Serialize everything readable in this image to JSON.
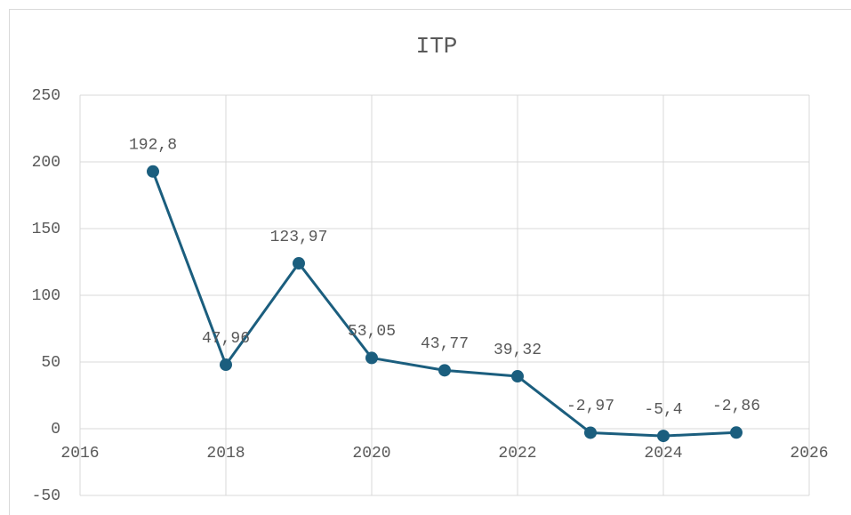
{
  "chart_data": {
    "type": "line",
    "title": "ITP",
    "x": [
      2017,
      2018,
      2019,
      2020,
      2021,
      2022,
      2023,
      2024,
      2025
    ],
    "series": [
      {
        "name": "ITP",
        "color": "#1b5e7e",
        "values": [
          192.8,
          47.96,
          123.97,
          53.05,
          43.77,
          39.32,
          -2.97,
          -5.4,
          -2.86
        ],
        "value_labels": [
          "192,8",
          "47,96",
          "123,97",
          "53,05",
          "43,77",
          "39,32",
          "-2,97",
          "-5,4",
          "-2,86"
        ]
      }
    ],
    "xlim": [
      2016,
      2026
    ],
    "xticks": [
      2016,
      2018,
      2020,
      2022,
      2024,
      2026
    ],
    "ylim": [
      -50,
      250
    ],
    "yticks": [
      -50,
      0,
      50,
      100,
      150,
      200,
      250
    ],
    "grid": true
  }
}
